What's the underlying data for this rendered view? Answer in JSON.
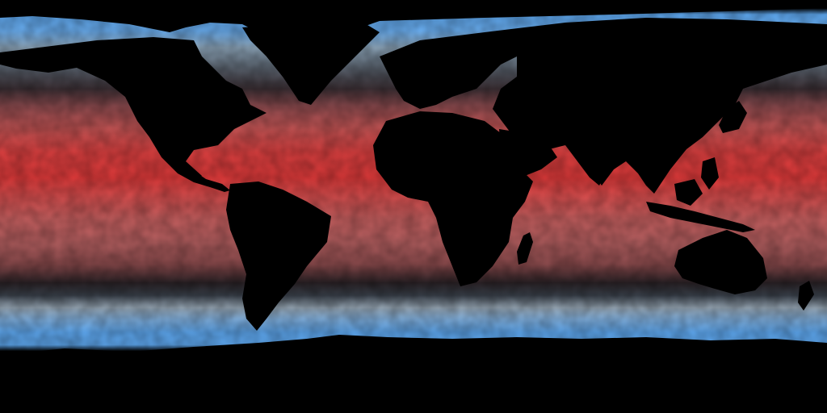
{
  "map": {
    "projection": "equirectangular",
    "colors": {
      "land": "#000000",
      "cold": "#5ea8f0",
      "cool": "#a9b9c8",
      "mid": "#2a2328",
      "warm": "#b86b6b",
      "hot": "#e23a3a",
      "hottest": "#ff2a20"
    }
  }
}
